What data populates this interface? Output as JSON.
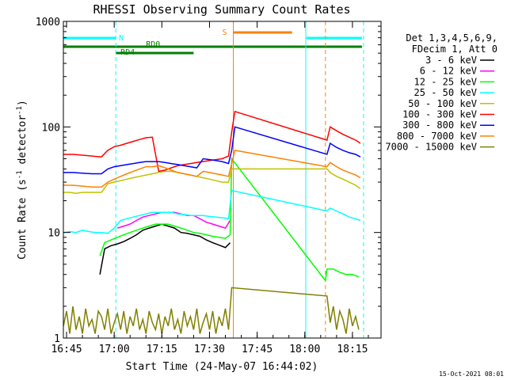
{
  "chart_data": {
    "type": "line",
    "title": "RHESSI Observing Summary Count Rates",
    "xlabel": "Start Time (24-May-07 16:44:02)",
    "ylabel_main": "Count Rate (s",
    "ylabel_sup1": "-1",
    "ylabel_mid": " detector",
    "ylabel_sup2": "-1",
    "ylabel_end": ")",
    "yscale": "log",
    "xlim": [
      "16:44",
      "18:24"
    ],
    "ylim": [
      1,
      1000
    ],
    "x_ticks": [
      "16:45",
      "17:00",
      "17:15",
      "17:30",
      "17:45",
      "18:00",
      "18:15"
    ],
    "x_ticks_min": [
      1,
      16,
      31,
      46,
      61,
      76,
      91
    ],
    "y_ticks": [
      "1",
      "10",
      "100",
      "1000"
    ],
    "y_ticks_val": [
      1,
      10,
      100,
      1000
    ],
    "legend_header": [
      "Det 1,3,4,5,6,9,",
      "FDecim 1, Att 0"
    ],
    "legend_location": "right, outside plot",
    "timestamp": "15-Oct-2021 08:01",
    "flags": {
      "N_label": "N",
      "S_label": "S",
      "RD0_label": "RD0",
      "RD4_label": "RD4",
      "N_color": "#00ffff",
      "S_color": "#ff8000",
      "green_color": "#008000",
      "night_segments_min": [
        [
          0,
          16.5
        ],
        [
          76.5,
          94
        ]
      ],
      "saa_segment_min": [
        53.5,
        72
      ],
      "rd0_segment_min": [
        0,
        94
      ],
      "rd4_segment_min": [
        16.5,
        41
      ]
    },
    "vertical_lines": {
      "cyan_solid_min": [
        76.3
      ],
      "cyan_dashed_min": [
        16.5,
        94.5
      ],
      "orange_solid_min": [
        53.5
      ],
      "orange_dashed_min": [
        82.5
      ]
    },
    "series": [
      {
        "name": "3 - 6 keV",
        "color": "#000000",
        "x_min": [
          11.5,
          13,
          15,
          17,
          19,
          21,
          23,
          25,
          27,
          29,
          31,
          33,
          35,
          37,
          39,
          41,
          43,
          45,
          47,
          49,
          51,
          52.5
        ],
        "values": [
          4,
          7,
          7.5,
          7.8,
          8.2,
          8.8,
          9.5,
          10.5,
          11,
          11.5,
          12,
          11.5,
          11,
          10,
          9.8,
          9.5,
          9.2,
          8.5,
          8,
          7.6,
          7.2,
          8
        ]
      },
      {
        "name": "6 - 12 keV",
        "color": "#ff00ff",
        "x_min": [
          17,
          19,
          21,
          23,
          25,
          27,
          29,
          31,
          33,
          35,
          37,
          39,
          41,
          43,
          45,
          47,
          49,
          51,
          52.5
        ],
        "values": [
          11,
          11.5,
          12,
          13,
          14,
          14.5,
          15,
          15.5,
          15.5,
          15.5,
          15,
          14.5,
          14.5,
          13.5,
          12.5,
          12,
          11.5,
          11,
          13
        ]
      },
      {
        "name": "12 - 25 keV",
        "color": "#00ff00",
        "x_min": [
          11.5,
          13,
          15,
          17,
          19,
          21,
          23,
          25,
          27,
          29,
          31,
          33,
          35,
          37,
          39,
          41,
          43,
          45,
          47,
          49,
          51,
          52.5,
          53,
          82.5,
          83,
          85,
          87,
          89,
          91,
          93
        ],
        "values": [
          6,
          8,
          8.5,
          9,
          9.5,
          10,
          10.5,
          11,
          11.5,
          12,
          12,
          12,
          11.5,
          11,
          10.5,
          10,
          9.8,
          9.5,
          9.2,
          9,
          8.8,
          9.5,
          50,
          3.5,
          4.5,
          4.5,
          4.2,
          4,
          4,
          3.8
        ]
      },
      {
        "name": "25 - 50 keV",
        "color": "#00ffff",
        "x_min": [
          0,
          2,
          4,
          6,
          8,
          10,
          12,
          14,
          16,
          18,
          20,
          22,
          24,
          26,
          28,
          30,
          32,
          34,
          36,
          38,
          40,
          42,
          44,
          46,
          48,
          50,
          52,
          53,
          83,
          84,
          86,
          88,
          90,
          92,
          93.5
        ],
        "values": [
          10,
          10.2,
          10,
          10.5,
          10.2,
          10,
          10,
          9.8,
          11,
          13,
          13.5,
          14,
          14.5,
          15,
          15.5,
          15.5,
          15.5,
          15.5,
          15,
          14.8,
          14.5,
          14.5,
          14.5,
          14.2,
          14,
          13.8,
          13.5,
          25,
          16,
          17,
          16,
          15,
          14,
          13.5,
          13
        ]
      },
      {
        "name": "50 - 100 keV",
        "color": "#c0c000",
        "x_min": [
          0,
          2,
          4,
          6,
          8,
          10,
          12,
          14,
          16,
          18,
          20,
          22,
          24,
          26,
          28,
          30,
          32,
          34,
          36,
          38,
          40,
          42,
          44,
          46,
          48,
          50,
          52,
          53,
          83,
          84,
          86,
          88,
          90,
          92,
          93.5
        ],
        "values": [
          24,
          24,
          23.5,
          24,
          24,
          24,
          24,
          29,
          30,
          31,
          32,
          33,
          34,
          35,
          36,
          37,
          38,
          38,
          37,
          36,
          35,
          34,
          33,
          32,
          31,
          30,
          30,
          40,
          40,
          37,
          34,
          32,
          30,
          28,
          26
        ]
      },
      {
        "name": "100 - 300 keV",
        "color": "#ff0000",
        "x_min": [
          0,
          3,
          6,
          9,
          12,
          14,
          16,
          18,
          20,
          22,
          24,
          26,
          28,
          30,
          32,
          34,
          36,
          38,
          40,
          42,
          44,
          46,
          48,
          50,
          52,
          53,
          54,
          83,
          84,
          86,
          88,
          90,
          92,
          93.5
        ],
        "values": [
          55,
          55,
          54,
          53,
          52,
          60,
          65,
          67,
          70,
          73,
          76,
          79,
          80,
          38,
          39,
          41,
          43,
          44,
          45,
          46,
          47,
          48,
          49,
          50,
          53,
          90,
          140,
          75,
          100,
          92,
          85,
          80,
          75,
          70
        ]
      },
      {
        "name": "300 - 800 keV",
        "color": "#0000ff",
        "x_min": [
          0,
          3,
          6,
          9,
          12,
          14,
          16,
          18,
          20,
          22,
          24,
          26,
          28,
          30,
          32,
          34,
          36,
          38,
          40,
          42,
          44,
          46,
          48,
          50,
          52,
          53,
          54,
          83,
          84,
          86,
          88,
          90,
          92,
          93.5
        ],
        "values": [
          37,
          37,
          36.5,
          36,
          36,
          40,
          42,
          43,
          44,
          45,
          46,
          47,
          47,
          47,
          46,
          45,
          44,
          43,
          42,
          41,
          50,
          49,
          48,
          47,
          45,
          60,
          100,
          55,
          70,
          64,
          60,
          57,
          55,
          52
        ]
      },
      {
        "name": "800 - 7000 keV",
        "color": "#ff8000",
        "x_min": [
          0,
          3,
          6,
          9,
          12,
          14,
          16,
          18,
          20,
          22,
          24,
          26,
          28,
          30,
          32,
          34,
          36,
          38,
          40,
          42,
          44,
          46,
          48,
          50,
          52,
          53,
          54,
          83,
          84,
          86,
          88,
          90,
          92,
          93.5
        ],
        "values": [
          28,
          28,
          27.5,
          27,
          27,
          30,
          32,
          34,
          36,
          38,
          40,
          42,
          42,
          43,
          41,
          39,
          37,
          36,
          35,
          34,
          38,
          37,
          36,
          35,
          34,
          45,
          60,
          42,
          46,
          42,
          39,
          37,
          35,
          33
        ]
      },
      {
        "name": "7000 - 15000 keV",
        "color": "#808000",
        "x_min": [
          0,
          1,
          2,
          3,
          4,
          5,
          6,
          7,
          8,
          9,
          10,
          11,
          12,
          13,
          14,
          15,
          16,
          17,
          18,
          19,
          20,
          21,
          22,
          23,
          24,
          25,
          26,
          27,
          28,
          29,
          30,
          31,
          32,
          33,
          34,
          35,
          36,
          37,
          38,
          39,
          40,
          41,
          42,
          43,
          44,
          45,
          46,
          47,
          48,
          49,
          50,
          51,
          52,
          53,
          83,
          84,
          85,
          86,
          87,
          88,
          89,
          90,
          91,
          92,
          93
        ],
        "values": [
          1.3,
          1.8,
          1.1,
          2.0,
          1.2,
          1.6,
          1.1,
          1.9,
          1.3,
          1.5,
          1.1,
          1.8,
          1.6,
          1.2,
          1.9,
          1.1,
          1.4,
          1.7,
          1.2,
          1.8,
          1.1,
          1.6,
          1.3,
          1.9,
          1.2,
          1.5,
          1.1,
          1.8,
          1.4,
          1.2,
          1.7,
          1.1,
          1.6,
          1.3,
          1.9,
          1.2,
          1.5,
          1.1,
          1.8,
          1.3,
          1.6,
          1.2,
          1.9,
          1.1,
          1.4,
          1.7,
          1.2,
          1.8,
          1.1,
          1.6,
          1.3,
          1.9,
          1.2,
          3,
          2.5,
          1.4,
          2.0,
          1.2,
          1.8,
          1.5,
          1.1,
          1.9,
          1.3,
          1.6,
          1.2
        ]
      }
    ]
  }
}
